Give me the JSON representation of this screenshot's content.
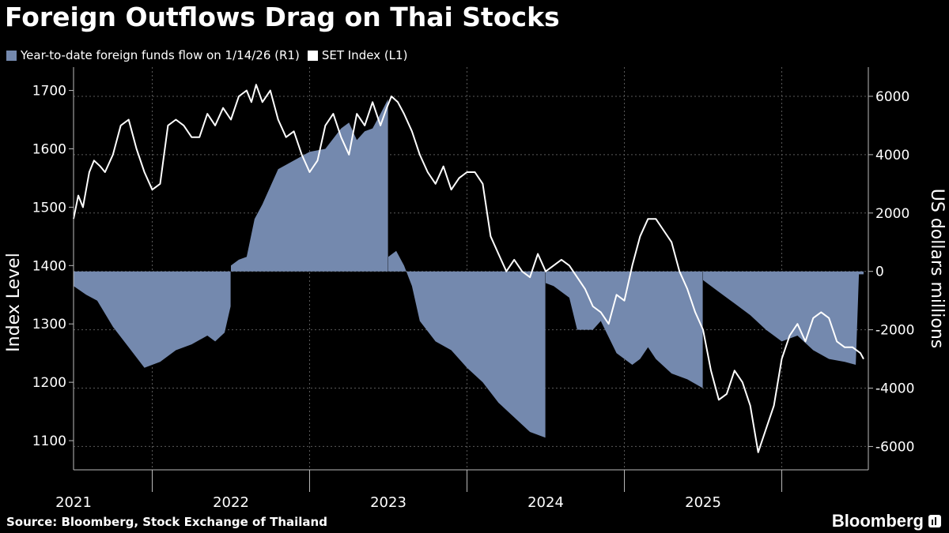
{
  "title": "Foreign Outflows Drag on Thai Stocks",
  "legend": [
    {
      "label": "Year-to-date foreign funds flow on 1/14/26 (R1)",
      "color": "#7489AE"
    },
    {
      "label": "SET Index  (L1)",
      "color": "#FFFFFF"
    }
  ],
  "source": "Source: Bloomberg, Stock Exchange of Thailand",
  "brand": "Bloomberg",
  "chart_data": {
    "type": "line+area",
    "title": "Foreign Outflows Drag on Thai Stocks",
    "x_range": [
      2021.0,
      2026.05
    ],
    "x_ticks": [
      "2021",
      "2022",
      "2023",
      "2024",
      "2025"
    ],
    "y_left": {
      "label": "Index Level",
      "range": [
        1050,
        1740
      ],
      "ticks": [
        1100,
        1200,
        1300,
        1400,
        1500,
        1600,
        1700
      ]
    },
    "y_right": {
      "label": "US dollars millions",
      "range": [
        -6800,
        7000
      ],
      "ticks": [
        -6000,
        -4000,
        -2000,
        0,
        2000,
        4000,
        6000
      ]
    },
    "grid": true,
    "series": [
      {
        "name": "Year-to-date foreign funds flow on 1/14/26 (R1)",
        "axis": "right",
        "type": "area",
        "color": "#7489AE",
        "segments": [
          {
            "x": [
              2021.0,
              2021.08,
              2021.15,
              2021.25,
              2021.35,
              2021.45,
              2021.55,
              2021.65,
              2021.75,
              2021.85,
              2021.9,
              2021.96,
              2021.998
            ],
            "y": [
              -500,
              -800,
              -1000,
              -1900,
              -2600,
              -3300,
              -3100,
              -2700,
              -2500,
              -2200,
              -2400,
              -2100,
              -1200
            ]
          },
          {
            "x": [
              2022.0,
              2022.05,
              2022.1,
              2022.15,
              2022.2,
              2022.3,
              2022.4,
              2022.5,
              2022.6,
              2022.7,
              2022.75,
              2022.8,
              2022.85,
              2022.9,
              2022.95,
              2022.998
            ],
            "y": [
              200,
              400,
              500,
              1800,
              2300,
              3500,
              3800,
              4100,
              4200,
              4900,
              5100,
              4500,
              4800,
              4900,
              5400,
              5900
            ]
          },
          {
            "x": [
              2023.0,
              2023.05,
              2023.1,
              2023.15,
              2023.2,
              2023.3,
              2023.4,
              2023.5,
              2023.6,
              2023.7,
              2023.8,
              2023.9,
              2023.998
            ],
            "y": [
              500,
              700,
              200,
              -500,
              -1700,
              -2400,
              -2700,
              -3300,
              -3800,
              -4500,
              -5000,
              -5500,
              -5700
            ]
          },
          {
            "x": [
              2024.0,
              2024.05,
              2024.15,
              2024.2,
              2024.3,
              2024.35,
              2024.45,
              2024.55,
              2024.6,
              2024.65,
              2024.7,
              2024.8,
              2024.9,
              2024.998
            ],
            "y": [
              -400,
              -500,
              -900,
              -2000,
              -2000,
              -1700,
              -2800,
              -3200,
              -3000,
              -2600,
              -3000,
              -3500,
              -3700,
              -4000
            ]
          },
          {
            "x": [
              2025.0,
              2025.1,
              2025.2,
              2025.3,
              2025.4,
              2025.5,
              2025.6,
              2025.7,
              2025.8,
              2025.9,
              2025.97,
              2025.99,
              2026.02
            ],
            "y": [
              -300,
              -700,
              -1100,
              -1500,
              -2000,
              -2400,
              -2200,
              -2700,
              -3000,
              -3100,
              -3200,
              -100,
              -100
            ]
          }
        ]
      },
      {
        "name": "SET Index  (L1)",
        "axis": "left",
        "type": "line",
        "color": "#FFFFFF",
        "x": [
          2021.0,
          2021.03,
          2021.06,
          2021.1,
          2021.13,
          2021.17,
          2021.2,
          2021.25,
          2021.3,
          2021.35,
          2021.4,
          2021.45,
          2021.5,
          2021.55,
          2021.6,
          2021.65,
          2021.7,
          2021.75,
          2021.8,
          2021.85,
          2021.9,
          2021.95,
          2022.0,
          2022.05,
          2022.1,
          2022.13,
          2022.16,
          2022.2,
          2022.25,
          2022.3,
          2022.35,
          2022.4,
          2022.45,
          2022.5,
          2022.55,
          2022.6,
          2022.65,
          2022.7,
          2022.75,
          2022.8,
          2022.85,
          2022.9,
          2022.95,
          2022.99,
          2023.02,
          2023.06,
          2023.1,
          2023.15,
          2023.2,
          2023.25,
          2023.3,
          2023.35,
          2023.4,
          2023.45,
          2023.5,
          2023.55,
          2023.6,
          2023.65,
          2023.7,
          2023.75,
          2023.8,
          2023.85,
          2023.9,
          2023.95,
          2024.0,
          2024.05,
          2024.1,
          2024.15,
          2024.2,
          2024.25,
          2024.3,
          2024.35,
          2024.4,
          2024.45,
          2024.5,
          2024.55,
          2024.6,
          2024.65,
          2024.7,
          2024.75,
          2024.8,
          2024.85,
          2024.9,
          2024.95,
          2025.0,
          2025.05,
          2025.1,
          2025.15,
          2025.2,
          2025.25,
          2025.3,
          2025.35,
          2025.4,
          2025.45,
          2025.5,
          2025.55,
          2025.6,
          2025.65,
          2025.7,
          2025.75,
          2025.8,
          2025.85,
          2025.9,
          2025.95,
          2026.0,
          2026.02
        ],
        "y": [
          1480,
          1520,
          1500,
          1560,
          1580,
          1570,
          1560,
          1590,
          1640,
          1650,
          1600,
          1560,
          1530,
          1540,
          1640,
          1650,
          1640,
          1620,
          1620,
          1660,
          1640,
          1670,
          1650,
          1690,
          1700,
          1680,
          1710,
          1680,
          1700,
          1650,
          1620,
          1630,
          1590,
          1560,
          1580,
          1640,
          1660,
          1620,
          1590,
          1660,
          1640,
          1680,
          1640,
          1670,
          1690,
          1680,
          1660,
          1630,
          1590,
          1560,
          1540,
          1570,
          1530,
          1550,
          1560,
          1560,
          1540,
          1450,
          1420,
          1390,
          1410,
          1390,
          1380,
          1420,
          1390,
          1400,
          1410,
          1400,
          1380,
          1360,
          1330,
          1320,
          1300,
          1350,
          1340,
          1400,
          1450,
          1480,
          1480,
          1460,
          1440,
          1390,
          1360,
          1320,
          1290,
          1220,
          1170,
          1180,
          1220,
          1200,
          1160,
          1080,
          1120,
          1160,
          1240,
          1280,
          1300,
          1270,
          1310,
          1320,
          1310,
          1270,
          1260,
          1260,
          1250,
          1240
        ]
      }
    ]
  }
}
